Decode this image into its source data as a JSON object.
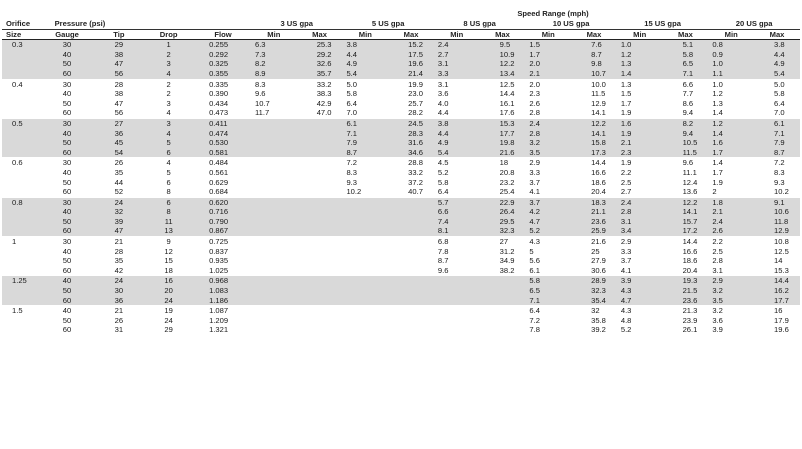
{
  "header": {
    "speed_range": "Speed Range (mph)",
    "orifice": "Orifice",
    "pressure": "Pressure (psi)",
    "gpa": [
      "3 US gpa",
      "5 US gpa",
      "8 US gpa",
      "10 US gpa",
      "15 US gpa",
      "20 US gpa"
    ],
    "size": "Size",
    "gauge": "Gauge",
    "tip": "Tip",
    "drop": "Drop",
    "flow": "Flow",
    "min": "Min",
    "max": "Max"
  },
  "groups": [
    {
      "size": "0.3",
      "rows": [
        [
          "30",
          "29",
          "1",
          "0.255",
          "6.3",
          "25.3",
          "3.8",
          "15.2",
          "2.4",
          "9.5",
          "1.5",
          "7.6",
          "1.0",
          "5.1",
          "0.8",
          "3.8"
        ],
        [
          "40",
          "38",
          "2",
          "0.292",
          "7.3",
          "29.2",
          "4.4",
          "17.5",
          "2.7",
          "10.9",
          "1.7",
          "8.7",
          "1.2",
          "5.8",
          "0.9",
          "4.4"
        ],
        [
          "50",
          "47",
          "3",
          "0.325",
          "8.2",
          "32.6",
          "4.9",
          "19.6",
          "3.1",
          "12.2",
          "2.0",
          "9.8",
          "1.3",
          "6.5",
          "1.0",
          "4.9"
        ],
        [
          "60",
          "56",
          "4",
          "0.355",
          "8.9",
          "35.7",
          "5.4",
          "21.4",
          "3.3",
          "13.4",
          "2.1",
          "10.7",
          "1.4",
          "7.1",
          "1.1",
          "5.4"
        ]
      ]
    },
    {
      "size": "0.4",
      "rows": [
        [
          "30",
          "28",
          "2",
          "0.335",
          "8.3",
          "33.2",
          "5.0",
          "19.9",
          "3.1",
          "12.5",
          "2.0",
          "10.0",
          "1.3",
          "6.6",
          "1.0",
          "5.0"
        ],
        [
          "40",
          "38",
          "2",
          "0.390",
          "9.6",
          "38.3",
          "5.8",
          "23.0",
          "3.6",
          "14.4",
          "2.3",
          "11.5",
          "1.5",
          "7.7",
          "1.2",
          "5.8"
        ],
        [
          "50",
          "47",
          "3",
          "0.434",
          "10.7",
          "42.9",
          "6.4",
          "25.7",
          "4.0",
          "16.1",
          "2.6",
          "12.9",
          "1.7",
          "8.6",
          "1.3",
          "6.4"
        ],
        [
          "60",
          "56",
          "4",
          "0.473",
          "11.7",
          "47.0",
          "7.0",
          "28.2",
          "4.4",
          "17.6",
          "2.8",
          "14.1",
          "1.9",
          "9.4",
          "1.4",
          "7.0"
        ]
      ]
    },
    {
      "size": "0.5",
      "rows": [
        [
          "30",
          "27",
          "3",
          "0.411",
          "",
          "",
          "6.1",
          "24.5",
          "3.8",
          "15.3",
          "2.4",
          "12.2",
          "1.6",
          "8.2",
          "1.2",
          "6.1"
        ],
        [
          "40",
          "36",
          "4",
          "0.474",
          "",
          "",
          "7.1",
          "28.3",
          "4.4",
          "17.7",
          "2.8",
          "14.1",
          "1.9",
          "9.4",
          "1.4",
          "7.1"
        ],
        [
          "50",
          "45",
          "5",
          "0.530",
          "",
          "",
          "7.9",
          "31.6",
          "4.9",
          "19.8",
          "3.2",
          "15.8",
          "2.1",
          "10.5",
          "1.6",
          "7.9"
        ],
        [
          "60",
          "54",
          "6",
          "0.581",
          "",
          "",
          "8.7",
          "34.6",
          "5.4",
          "21.6",
          "3.5",
          "17.3",
          "2.3",
          "11.5",
          "1.7",
          "8.7"
        ]
      ]
    },
    {
      "size": "0.6",
      "rows": [
        [
          "30",
          "26",
          "4",
          "0.484",
          "",
          "",
          "7.2",
          "28.8",
          "4.5",
          "18",
          "2.9",
          "14.4",
          "1.9",
          "9.6",
          "1.4",
          "7.2"
        ],
        [
          "40",
          "35",
          "5",
          "0.561",
          "",
          "",
          "8.3",
          "33.2",
          "5.2",
          "20.8",
          "3.3",
          "16.6",
          "2.2",
          "11.1",
          "1.7",
          "8.3"
        ],
        [
          "50",
          "44",
          "6",
          "0.629",
          "",
          "",
          "9.3",
          "37.2",
          "5.8",
          "23.2",
          "3.7",
          "18.6",
          "2.5",
          "12.4",
          "1.9",
          "9.3"
        ],
        [
          "60",
          "52",
          "8",
          "0.684",
          "",
          "",
          "10.2",
          "40.7",
          "6.4",
          "25.4",
          "4.1",
          "20.4",
          "2.7",
          "13.6",
          "2",
          "10.2"
        ]
      ]
    },
    {
      "size": "0.8",
      "rows": [
        [
          "30",
          "24",
          "6",
          "0.620",
          "",
          "",
          "",
          "",
          "5.7",
          "22.9",
          "3.7",
          "18.3",
          "2.4",
          "12.2",
          "1.8",
          "9.1"
        ],
        [
          "40",
          "32",
          "8",
          "0.716",
          "",
          "",
          "",
          "",
          "6.6",
          "26.4",
          "4.2",
          "21.1",
          "2.8",
          "14.1",
          "2.1",
          "10.6"
        ],
        [
          "50",
          "39",
          "11",
          "0.790",
          "",
          "",
          "",
          "",
          "7.4",
          "29.5",
          "4.7",
          "23.6",
          "3.1",
          "15.7",
          "2.4",
          "11.8"
        ],
        [
          "60",
          "47",
          "13",
          "0.867",
          "",
          "",
          "",
          "",
          "8.1",
          "32.3",
          "5.2",
          "25.9",
          "3.4",
          "17.2",
          "2.6",
          "12.9"
        ]
      ]
    },
    {
      "size": "1",
      "rows": [
        [
          "30",
          "21",
          "9",
          "0.725",
          "",
          "",
          "",
          "",
          "6.8",
          "27",
          "4.3",
          "21.6",
          "2.9",
          "14.4",
          "2.2",
          "10.8"
        ],
        [
          "40",
          "28",
          "12",
          "0.837",
          "",
          "",
          "",
          "",
          "7.8",
          "31.2",
          "5",
          "25",
          "3.3",
          "16.6",
          "2.5",
          "12.5"
        ],
        [
          "50",
          "35",
          "15",
          "0.935",
          "",
          "",
          "",
          "",
          "8.7",
          "34.9",
          "5.6",
          "27.9",
          "3.7",
          "18.6",
          "2.8",
          "14"
        ],
        [
          "60",
          "42",
          "18",
          "1.025",
          "",
          "",
          "",
          "",
          "9.6",
          "38.2",
          "6.1",
          "30.6",
          "4.1",
          "20.4",
          "3.1",
          "15.3"
        ]
      ]
    },
    {
      "size": "1.25",
      "rows": [
        [
          "40",
          "24",
          "16",
          "0.968",
          "",
          "",
          "",
          "",
          "",
          "",
          "5.8",
          "28.9",
          "3.9",
          "19.3",
          "2.9",
          "14.4"
        ],
        [
          "50",
          "30",
          "20",
          "1.083",
          "",
          "",
          "",
          "",
          "",
          "",
          "6.5",
          "32.3",
          "4.3",
          "21.5",
          "3.2",
          "16.2"
        ],
        [
          "60",
          "36",
          "24",
          "1.186",
          "",
          "",
          "",
          "",
          "",
          "",
          "7.1",
          "35.4",
          "4.7",
          "23.6",
          "3.5",
          "17.7"
        ]
      ]
    },
    {
      "size": "1.5",
      "rows": [
        [
          "40",
          "21",
          "19",
          "1.087",
          "",
          "",
          "",
          "",
          "",
          "",
          "6.4",
          "32",
          "4.3",
          "21.3",
          "3.2",
          "16"
        ],
        [
          "50",
          "26",
          "24",
          "1.209",
          "",
          "",
          "",
          "",
          "",
          "",
          "7.2",
          "35.8",
          "4.8",
          "23.9",
          "3.6",
          "17.9"
        ],
        [
          "60",
          "31",
          "29",
          "1.321",
          "",
          "",
          "",
          "",
          "",
          "",
          "7.8",
          "39.2",
          "5.2",
          "26.1",
          "3.9",
          "19.6"
        ]
      ]
    }
  ]
}
